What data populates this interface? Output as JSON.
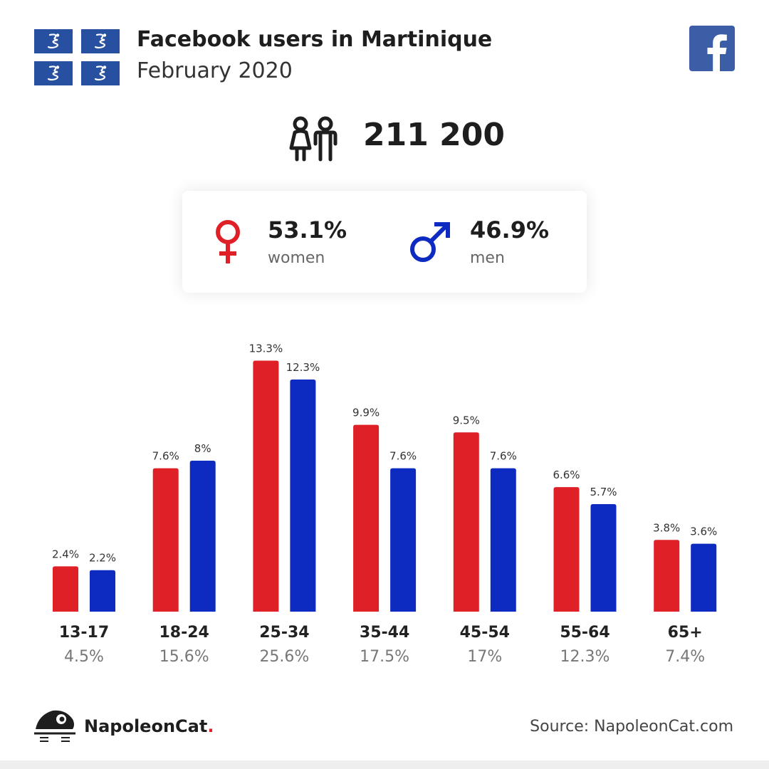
{
  "header": {
    "title": "Facebook users in Martinique",
    "subtitle": "February 2020"
  },
  "icons": {
    "flag": "martinique-snake-flag-icon",
    "facebook": "facebook-logo-icon",
    "people": "people-icon",
    "female": "female-symbol-icon",
    "male": "male-symbol-icon",
    "brand": "napoleoncat-logo-icon"
  },
  "colors": {
    "women": "#df2027",
    "men": "#0d2bc1",
    "facebook": "#3b5ea6",
    "flag": "#2850a0"
  },
  "summary": {
    "total": "211 200",
    "women_pct": "53.1%",
    "women_label": "women",
    "men_pct": "46.9%",
    "men_label": "men"
  },
  "chart_data": {
    "type": "bar",
    "categories": [
      "13-17",
      "18-24",
      "25-34",
      "35-44",
      "45-54",
      "55-64",
      "65+"
    ],
    "category_totals": [
      "4.5%",
      "15.6%",
      "25.6%",
      "17.5%",
      "17%",
      "12.3%",
      "7.4%"
    ],
    "series": [
      {
        "values": [
          2.4,
          7.6,
          13.3,
          9.9,
          9.5,
          6.6,
          3.8
        ],
        "labels": [
          "2.4%",
          "7.6%",
          "13.3%",
          "9.9%",
          "9.5%",
          "6.6%",
          "3.8%"
        ],
        "color": "#df2027"
      },
      {
        "values": [
          2.2,
          8,
          12.3,
          7.6,
          7.6,
          5.7,
          3.6
        ],
        "labels": [
          "2.2%",
          "8%",
          "12.3%",
          "7.6%",
          "7.6%",
          "5.7%",
          "3.6%"
        ],
        "color": "#0d2bc1"
      }
    ],
    "xlabel": "",
    "ylabel": "",
    "ylim": [
      0,
      14
    ],
    "grid": false,
    "legend": "none"
  },
  "footer": {
    "brand_name": "NapoleonCat",
    "brand_dot": ".",
    "source": "Source: NapoleonCat.com"
  }
}
